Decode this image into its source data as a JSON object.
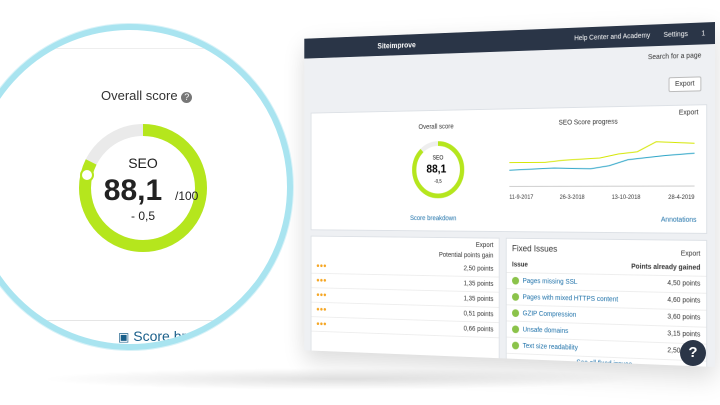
{
  "header": {
    "brand": "Siteimprove",
    "help": "Help Center and Academy",
    "settings": "Settings",
    "user": "1"
  },
  "search": "Search for a page",
  "export": "Export",
  "overview": {
    "export": "Export",
    "score_title": "Overall score",
    "seo_label": "SEO",
    "score_value": "88,1",
    "score_change": "-0,5",
    "breakdown": "Score breakdown",
    "progress_title": "SEO Score progress",
    "annotations": "Annotations",
    "x_labels": [
      "11-9-2017",
      "26-3-2018",
      "13-10-2018",
      "28-4-2019"
    ]
  },
  "magnifier": {
    "title": "Overall score",
    "label": "SEO",
    "value": "88,1",
    "max": "/100",
    "change": "- 0,5",
    "breakdown": "Score breakdown"
  },
  "left_table": {
    "export": "Export",
    "header": "Potential points gain",
    "rows": [
      "2,50 points",
      "1,35 points",
      "1,35 points",
      "0,51 points",
      "0,66 points"
    ]
  },
  "fixed_issues": {
    "title": "Fixed Issues",
    "export": "Export",
    "col_issue": "Issue",
    "col_points": "Points already gained",
    "rows": [
      {
        "issue": "Pages missing SSL",
        "points": "4,50 points"
      },
      {
        "issue": "Pages with mixed HTTPS content",
        "points": "4,60 points"
      },
      {
        "issue": "GZIP Compression",
        "points": "3,60 points"
      },
      {
        "issue": "Unsafe domains",
        "points": "3,15 points"
      },
      {
        "issue": "Text size readability",
        "points": "2,50 points"
      }
    ],
    "more": "See all fixed issues"
  }
}
